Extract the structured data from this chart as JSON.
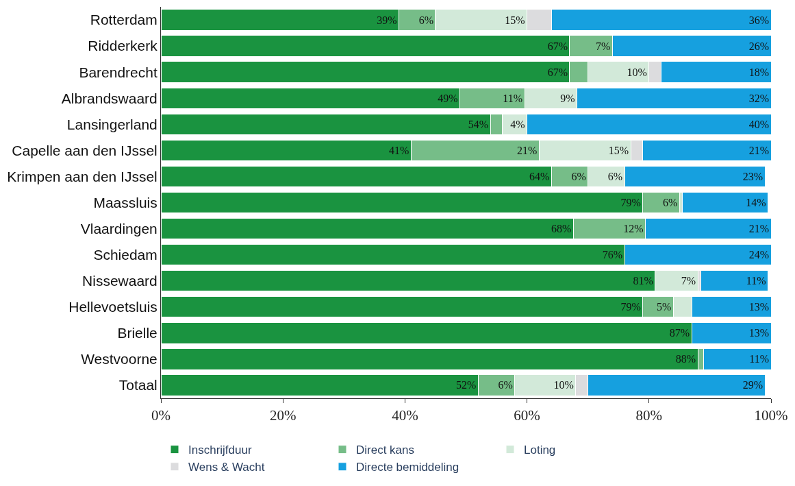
{
  "chart_data": {
    "type": "bar",
    "orientation": "horizontal",
    "stacked": true,
    "categories": [
      "Rotterdam",
      "Ridderkerk",
      "Barendrecht",
      "Albrandswaard",
      "Lansingerland",
      "Capelle aan den IJssel",
      "Krimpen aan den IJssel",
      "Maassluis",
      "Vlaardingen",
      "Schiedam",
      "Nissewaard",
      "Hellevoetsluis",
      "Brielle",
      "Westvoorne",
      "Totaal"
    ],
    "series": [
      {
        "name": "Inschrijfduur",
        "color": "#1a9340",
        "values": [
          39,
          67,
          67,
          49,
          54,
          41,
          64,
          79,
          67.6,
          76,
          81,
          79,
          87,
          88,
          52
        ],
        "value_labels": [
          "39%",
          "67%",
          "67%",
          "49%",
          "54%",
          "41%",
          "64%",
          "79%",
          "68%",
          "76%",
          "81%",
          "79%",
          "87%",
          "88%",
          "52%"
        ]
      },
      {
        "name": "Direct kans",
        "color": "#76bd88",
        "values": [
          6,
          7,
          3,
          10.6,
          2,
          21,
          6,
          6,
          11.8,
          null,
          null,
          5,
          null,
          1,
          6
        ],
        "value_labels": [
          "6%",
          "7%",
          null,
          "11%",
          null,
          "21%",
          "6%",
          "6%",
          "12%",
          null,
          null,
          "5%",
          null,
          null,
          "6%"
        ]
      },
      {
        "name": "Loting",
        "color": "#d2e9d9",
        "values": [
          15,
          null,
          10,
          8.6,
          4,
          15,
          6,
          0.5,
          null,
          null,
          7,
          3,
          null,
          null,
          10
        ],
        "value_labels": [
          "15%",
          null,
          "10%",
          "9%",
          "4%",
          "15%",
          "6%",
          null,
          null,
          null,
          "7%",
          null,
          null,
          null,
          "10%"
        ]
      },
      {
        "name": "Wens & Wacht",
        "color": "#dcdcde",
        "values": [
          4,
          null,
          2,
          null,
          null,
          2,
          null,
          null,
          null,
          null,
          0.5,
          null,
          null,
          null,
          2
        ],
        "value_labels": [
          null,
          null,
          null,
          null,
          null,
          null,
          null,
          null,
          null,
          null,
          null,
          null,
          null,
          null,
          null
        ]
      },
      {
        "name": "Directe bemiddeling",
        "color": "#16a0df",
        "values": [
          36,
          26,
          18,
          31.8,
          40,
          21,
          23,
          14,
          20.6,
          24,
          11,
          13,
          13,
          11,
          29
        ],
        "value_labels": [
          "36%",
          "26%",
          "18%",
          "32%",
          "40%",
          "21%",
          "23%",
          "14%",
          "21%",
          "24%",
          "11%",
          "13%",
          "13%",
          "11%",
          "29%"
        ]
      }
    ],
    "xlim": [
      0,
      100
    ],
    "xticks": [
      {
        "value": 0,
        "label": "0%"
      },
      {
        "value": 20,
        "label": "20%"
      },
      {
        "value": 40,
        "label": "40%"
      },
      {
        "value": 60,
        "label": "60%"
      },
      {
        "value": 80,
        "label": "80%"
      },
      {
        "value": 100,
        "label": "100%"
      }
    ],
    "legend": "bottom"
  }
}
